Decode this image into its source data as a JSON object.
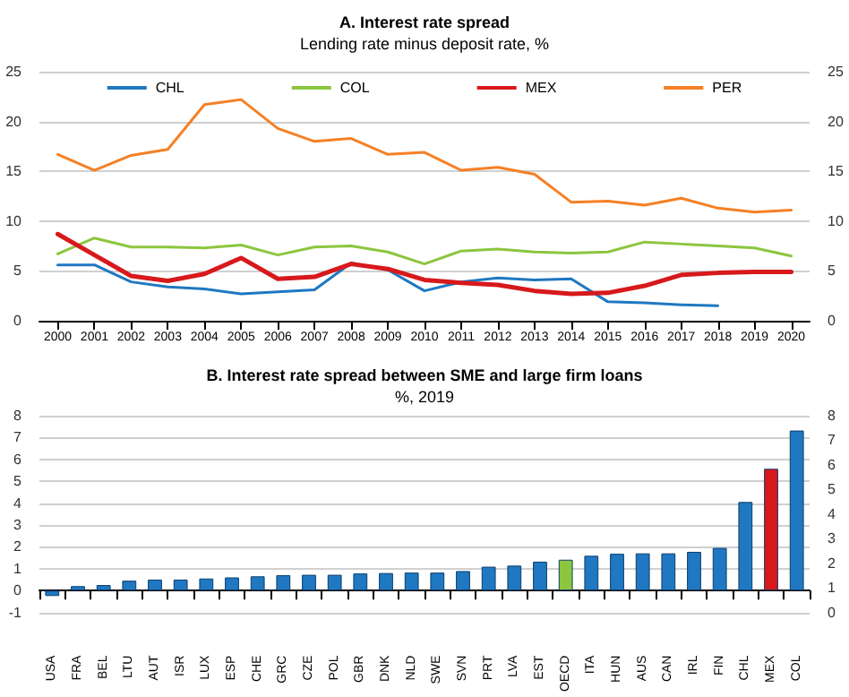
{
  "chart_data": [
    {
      "type": "line",
      "title": "A. Interest rate spread",
      "subtitle": "Lending rate minus deposit rate, %",
      "categories": [
        "2000",
        "2001",
        "2002",
        "2003",
        "2004",
        "2005",
        "2006",
        "2007",
        "2008",
        "2009",
        "2010",
        "2011",
        "2012",
        "2013",
        "2014",
        "2015",
        "2016",
        "2017",
        "2018",
        "2019",
        "2020"
      ],
      "series": [
        {
          "name": "CHL",
          "color": "#1f78c1",
          "values": [
            5.6,
            5.6,
            3.9,
            3.4,
            3.2,
            2.7,
            2.9,
            3.1,
            5.8,
            5.1,
            3.0,
            3.9,
            4.3,
            4.1,
            4.2,
            1.9,
            1.8,
            1.6,
            1.5,
            null,
            null
          ]
        },
        {
          "name": "COL",
          "color": "#8cc63f",
          "values": [
            6.7,
            8.3,
            7.4,
            7.4,
            7.3,
            7.6,
            6.6,
            7.4,
            7.5,
            6.9,
            5.7,
            7.0,
            7.2,
            6.9,
            6.8,
            6.9,
            7.9,
            7.7,
            7.5,
            7.3,
            6.5
          ]
        },
        {
          "name": "MEX",
          "color": "#d7191c",
          "values": [
            8.7,
            6.6,
            4.5,
            4.0,
            4.7,
            6.3,
            4.2,
            4.4,
            5.7,
            5.2,
            4.1,
            3.8,
            3.6,
            3.0,
            2.7,
            2.8,
            3.5,
            4.6,
            4.8,
            4.9,
            4.9
          ]
        },
        {
          "name": "PER",
          "color": "#f58025",
          "values": [
            16.7,
            15.1,
            16.6,
            17.2,
            21.7,
            22.2,
            19.3,
            18.0,
            18.3,
            16.7,
            16.9,
            15.1,
            15.4,
            14.7,
            11.9,
            12.0,
            11.6,
            12.3,
            11.3,
            10.9,
            11.1
          ]
        }
      ],
      "ylim": [
        0,
        25
      ],
      "yticks": [
        0,
        5,
        10,
        15,
        20,
        25
      ],
      "y2lim": [
        0,
        25
      ],
      "y2ticks": [
        0,
        5,
        10,
        15,
        20,
        25
      ],
      "grid": "y",
      "legend": "top",
      "marker": "none",
      "line_style": "solid"
    },
    {
      "type": "bar",
      "title": "B. Interest rate spread between SME and large firm loans",
      "subtitle": "%, 2019",
      "categories": [
        "USA",
        "FRA",
        "BEL",
        "LTU",
        "AUT",
        "ISR",
        "LUX",
        "ESP",
        "CHE",
        "GRC",
        "CZE",
        "POL",
        "GBR",
        "DNK",
        "NLD",
        "SWE",
        "SVN",
        "PRT",
        "LVA",
        "EST",
        "OECD",
        "ITA",
        "HUN",
        "AUS",
        "CAN",
        "IRL",
        "FIN",
        "CHL",
        "MEX",
        "COL"
      ],
      "values": [
        -0.25,
        0.2,
        0.25,
        0.45,
        0.5,
        0.5,
        0.55,
        0.6,
        0.65,
        0.7,
        0.72,
        0.72,
        0.78,
        0.8,
        0.82,
        0.82,
        0.89,
        1.09,
        1.14,
        1.32,
        1.41,
        1.59,
        1.68,
        1.7,
        1.7,
        1.77,
        1.95,
        4.05,
        5.57,
        7.32
      ],
      "colors": [
        "#1f78c1",
        "#1f78c1",
        "#1f78c1",
        "#1f78c1",
        "#1f78c1",
        "#1f78c1",
        "#1f78c1",
        "#1f78c1",
        "#1f78c1",
        "#1f78c1",
        "#1f78c1",
        "#1f78c1",
        "#1f78c1",
        "#1f78c1",
        "#1f78c1",
        "#1f78c1",
        "#1f78c1",
        "#1f78c1",
        "#1f78c1",
        "#1f78c1",
        "#8cc63f",
        "#1f78c1",
        "#1f78c1",
        "#1f78c1",
        "#1f78c1",
        "#1f78c1",
        "#1f78c1",
        "#1f78c1",
        "#d7191c",
        "#1f78c1"
      ],
      "ylim": [
        -1,
        8
      ],
      "yticks": [
        -1,
        0,
        1,
        2,
        3,
        4,
        5,
        6,
        7,
        8
      ],
      "y2lim": [
        0,
        8
      ],
      "y2ticks": [
        0,
        1,
        2,
        3,
        4,
        5,
        6,
        7,
        8
      ],
      "grid": "y",
      "legend": false
    }
  ]
}
